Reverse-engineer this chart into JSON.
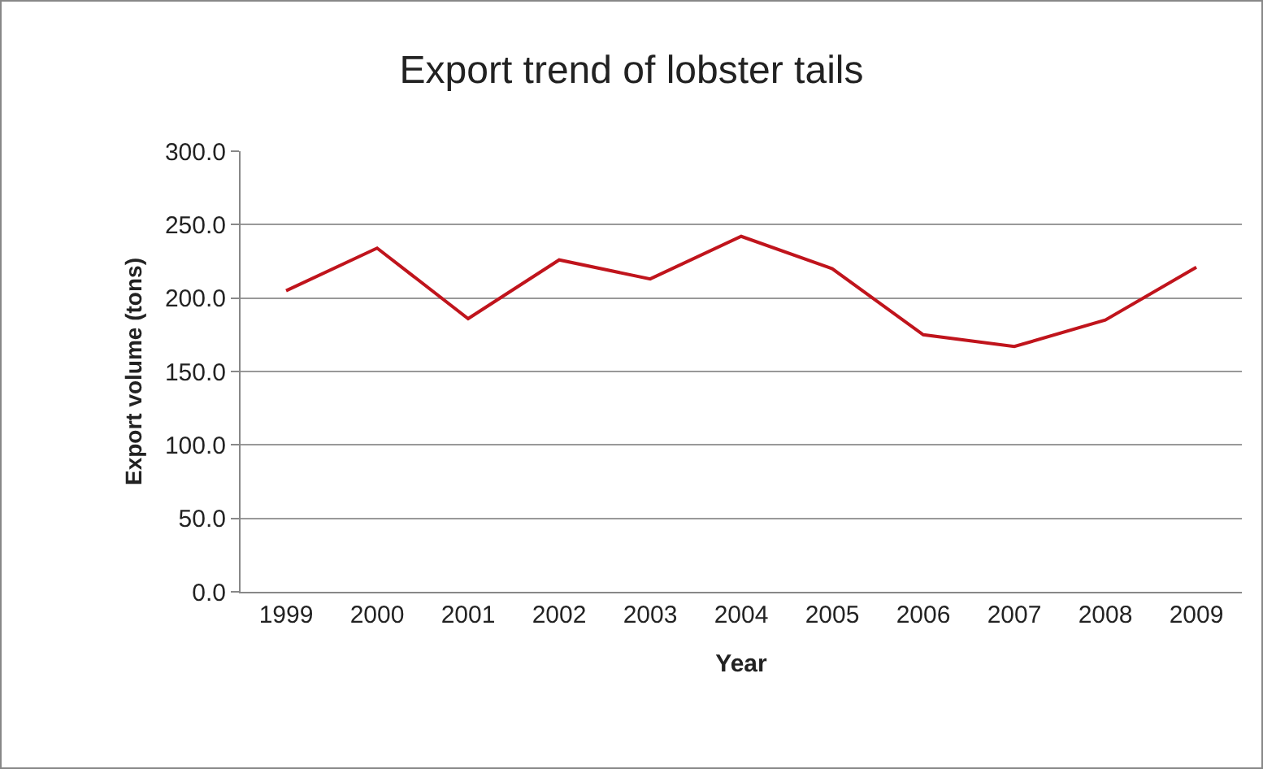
{
  "chart_data": {
    "type": "line",
    "title": "Export trend of lobster tails",
    "xlabel": "Year",
    "ylabel": "Export volume (tons)",
    "categories": [
      "1999",
      "2000",
      "2001",
      "2002",
      "2003",
      "2004",
      "2005",
      "2006",
      "2007",
      "2008",
      "2009"
    ],
    "series": [
      {
        "color": "#c0141c",
        "values": [
          205,
          234,
          186,
          226,
          213,
          242,
          220,
          175,
          167,
          185,
          221
        ]
      }
    ],
    "ylim": [
      0,
      300
    ],
    "yticks": [
      {
        "value": 0,
        "label": "0.0"
      },
      {
        "value": 50,
        "label": "50.0"
      },
      {
        "value": 100,
        "label": "100.0"
      },
      {
        "value": 150,
        "label": "150.0"
      },
      {
        "value": 200,
        "label": "200.0"
      },
      {
        "value": 250,
        "label": "250.0"
      },
      {
        "value": 300,
        "label": "300.0"
      }
    ],
    "grid": "y",
    "marker": "none",
    "line_style": "solid"
  }
}
